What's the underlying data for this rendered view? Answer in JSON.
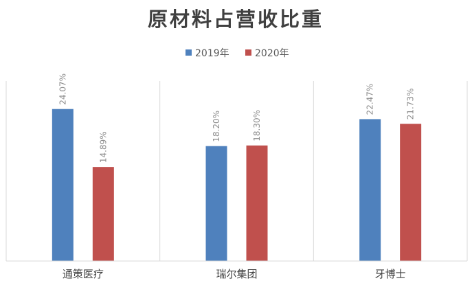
{
  "chart_data": {
    "type": "bar",
    "title": "原材料占营收比重",
    "categories": [
      "通策医疗",
      "瑞尔集团",
      "牙博士"
    ],
    "series": [
      {
        "name": "2019年",
        "values": [
          24.07,
          18.2,
          22.47
        ],
        "labels": [
          "24.07%",
          "18.20%",
          "22.47%"
        ],
        "color": "#4f81bd"
      },
      {
        "name": "2020年",
        "values": [
          14.89,
          18.3,
          21.73
        ],
        "labels": [
          "14.89%",
          "18.30%",
          "21.73%"
        ],
        "color": "#c0504d"
      }
    ],
    "ylim": [
      0,
      28.5
    ],
    "legend_position": "top-center",
    "grid": false,
    "category_separators": true,
    "gridline_color": "#d9d9d9"
  }
}
